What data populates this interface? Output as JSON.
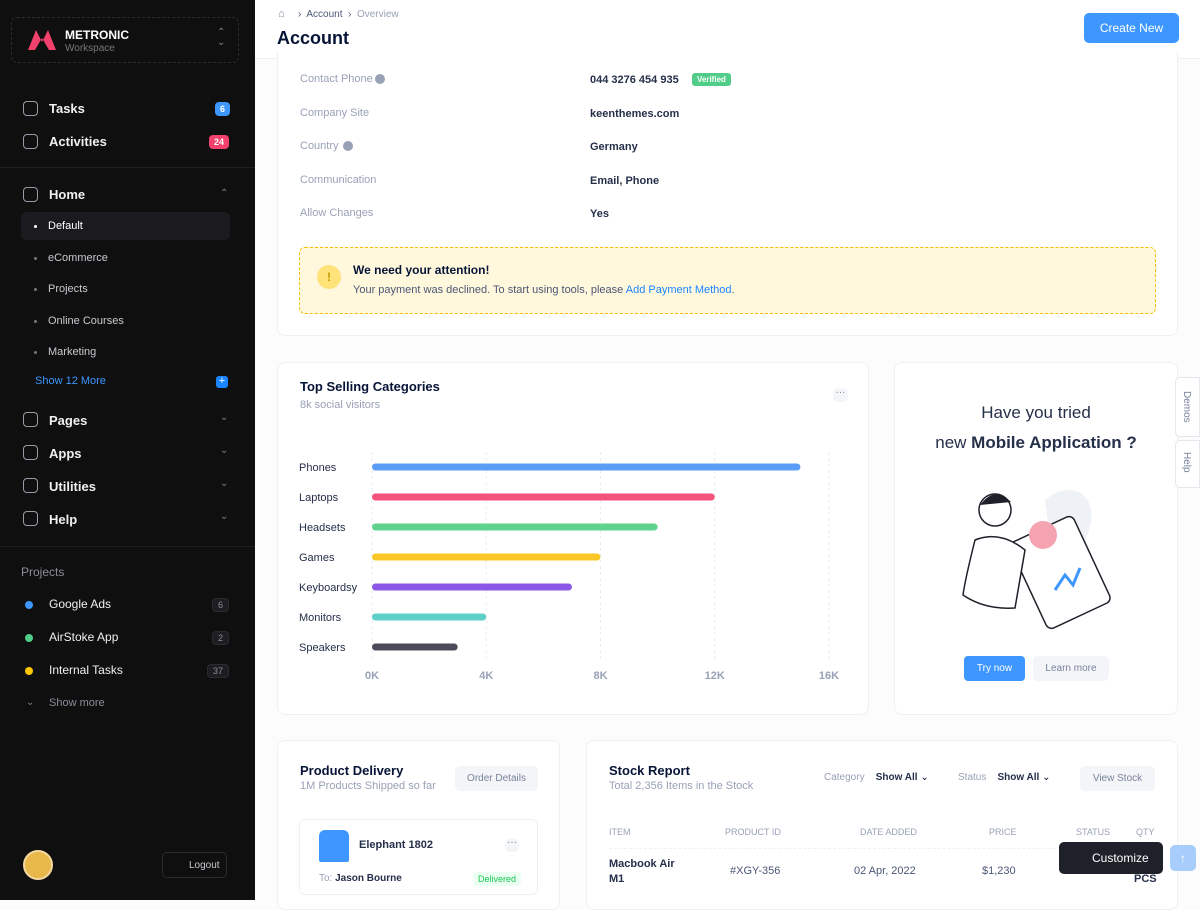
{
  "brand": {
    "name": "METRONIC",
    "subtitle": "Workspace"
  },
  "nav_top": [
    {
      "label": "Tasks",
      "badge": 6
    },
    {
      "label": "Activities",
      "badge": 24
    }
  ],
  "home": {
    "label": "Home",
    "items": [
      "Default",
      "eCommerce",
      "Projects",
      "Online Courses",
      "Marketing"
    ],
    "more": "Show 12 More"
  },
  "nav_sections": [
    "Pages",
    "Apps",
    "Utilities",
    "Help"
  ],
  "projects": {
    "title": "Projects",
    "items": [
      {
        "label": "Google Ads",
        "count": 6,
        "color": "#3e97ff"
      },
      {
        "label": "AirStoke App",
        "count": 2,
        "color": "#50cd89"
      },
      {
        "label": "Internal Tasks",
        "count": 37,
        "color": "#ffc700"
      }
    ],
    "more": "Show more"
  },
  "logout": "Logout",
  "header": {
    "breadcrumb": [
      "Account",
      "Overview"
    ],
    "title": "Account",
    "button": "Create New"
  },
  "account": {
    "rows": [
      [
        "Contact Phone",
        "044 3276 454 935"
      ],
      [
        "Company Site",
        "keenthemes.com"
      ],
      [
        "Country",
        "Germany"
      ],
      [
        "Communication",
        "Email, Phone"
      ],
      [
        "Allow Changes",
        "Yes"
      ]
    ],
    "verified": "Verified"
  },
  "alert": {
    "title": "We need your attention!",
    "text": "Your payment was declined. To start using tools, please",
    "link": "Add Payment Method",
    "end": "."
  },
  "chart_data": {
    "type": "bar",
    "orientation": "horizontal",
    "title": "Top Selling Categories",
    "subtitle": "8k social visitors",
    "categories": [
      "Phones",
      "Laptops",
      "Headsets",
      "Games",
      "Keyboardsy",
      "Monitors",
      "Speakers"
    ],
    "values": [
      15000,
      12000,
      10000,
      8000,
      7000,
      4000,
      3000
    ],
    "colors": [
      "#5b9cf6",
      "#f2527b",
      "#5fd38d",
      "#f9c828",
      "#8c57e6",
      "#5ed0c9",
      "#4b4b5a"
    ],
    "xlim": [
      0,
      16000
    ],
    "xticks": [
      {
        "value": 0,
        "label": "0K"
      },
      {
        "value": 4000,
        "label": "4K"
      },
      {
        "value": 8000,
        "label": "8K"
      },
      {
        "value": 12000,
        "label": "12K"
      },
      {
        "value": 16000,
        "label": "16K"
      }
    ],
    "grid": true
  },
  "promo": {
    "line1": "Have you tried",
    "line2_prefix": "new",
    "line2_bold": "Mobile Application ?",
    "primary": "Try now",
    "secondary": "Learn more"
  },
  "side_tabs": [
    "Demos",
    "Help"
  ],
  "delivery": {
    "title": "Product Delivery",
    "subtitle": "1M Products Shipped so far",
    "button": "Order Details",
    "item": {
      "name": "Elephant 1802",
      "to_label": "To:",
      "to": "Jason Bourne",
      "status": "Delivered"
    }
  },
  "stock": {
    "title": "Stock Report",
    "subtitle": "Total 2,356 Items in the Stock",
    "filters": [
      {
        "label": "Category",
        "value": "Show All"
      },
      {
        "label": "Status",
        "value": "Show All"
      }
    ],
    "button": "View Stock",
    "columns": [
      "ITEM",
      "PRODUCT ID",
      "DATE ADDED",
      "PRICE",
      "STATUS",
      "QTY"
    ],
    "row": {
      "item": "Macbook Air M1",
      "id": "#XGY-356",
      "date": "02 Apr, 2022",
      "price": "$1,230",
      "qty": "PCS"
    }
  },
  "customize": "Customize"
}
